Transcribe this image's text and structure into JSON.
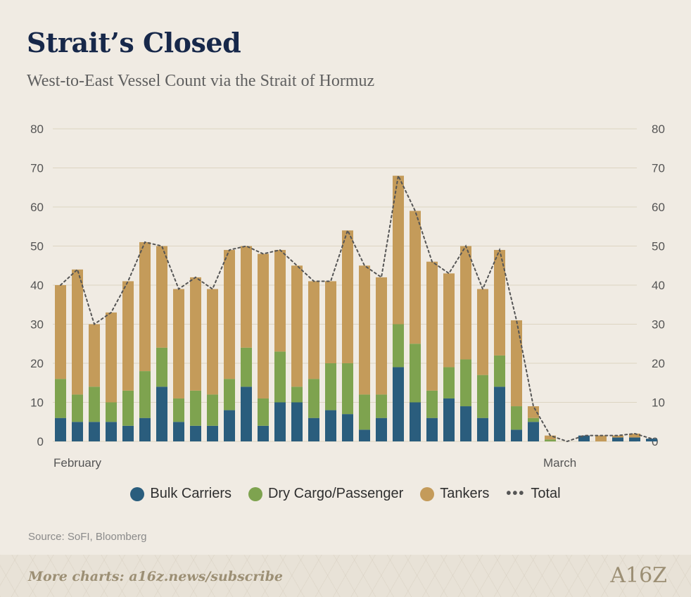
{
  "header": {
    "title": "Strait’s Closed",
    "subtitle": "West-to-East Vessel Count via the Strait of Hormuz"
  },
  "colors": {
    "bulk": "#2a5d7d",
    "dry": "#7ea34f",
    "tankers": "#c49b5a",
    "total_line": "#555555",
    "grid": "#ddd5c2",
    "axis_text": "#555555"
  },
  "chart_data": {
    "type": "bar",
    "stacked": true,
    "ylim": [
      0,
      80
    ],
    "yticks": [
      0,
      10,
      20,
      30,
      40,
      50,
      60,
      70,
      80
    ],
    "secondary_y_axis": true,
    "grid": true,
    "x_labels": [
      {
        "index": 0,
        "text": "February"
      },
      {
        "index": 29,
        "text": "March"
      }
    ],
    "series": [
      {
        "name": "Bulk Carriers",
        "values": [
          6,
          5,
          5,
          5,
          4,
          6,
          14,
          5,
          4,
          4,
          8,
          14,
          4,
          10,
          10,
          6,
          8,
          7,
          3,
          6,
          19,
          10,
          6,
          11,
          9,
          6,
          14,
          3,
          5,
          0,
          0,
          1.5,
          0,
          1,
          1,
          0.7
        ]
      },
      {
        "name": "Dry Cargo/Passenger",
        "values": [
          10,
          7,
          9,
          5,
          9,
          12,
          10,
          6,
          9,
          8,
          8,
          10,
          7,
          13,
          4,
          10,
          12,
          13,
          9,
          6,
          11,
          15,
          7,
          8,
          12,
          11,
          8,
          6,
          1,
          0.5,
          0,
          0,
          0,
          0,
          0,
          0
        ]
      },
      {
        "name": "Tankers",
        "values": [
          24,
          32,
          16,
          23,
          28,
          33,
          26,
          28,
          29,
          27,
          33,
          26,
          37,
          26,
          31,
          25,
          21,
          34,
          33,
          30,
          38,
          34,
          33,
          24,
          29,
          22,
          27,
          22,
          3,
          1,
          0,
          0,
          1.5,
          0.5,
          1,
          0
        ]
      }
    ],
    "total": {
      "name": "Total",
      "values": [
        40,
        44,
        30,
        33,
        41,
        51,
        50,
        39,
        42,
        39,
        49,
        50,
        48,
        49,
        45,
        41,
        41,
        54,
        45,
        42,
        68,
        59,
        46,
        43,
        50,
        39,
        49,
        31,
        9,
        1.5,
        0,
        1.5,
        1.5,
        1.5,
        2,
        0.7
      ]
    },
    "legend": [
      "Bulk Carriers",
      "Dry Cargo/Passenger",
      "Tankers",
      "Total"
    ],
    "legend_position": "bottom"
  },
  "legend": {
    "bulk": "Bulk Carriers",
    "dry": "Dry Cargo/Passenger",
    "tankers": "Tankers",
    "total_symbol": "•••",
    "total": "Total"
  },
  "source": "Source: SoFI, Bloomberg",
  "footer": {
    "cta": "More charts: a16z.news/subscribe",
    "logo": "A16Z"
  }
}
